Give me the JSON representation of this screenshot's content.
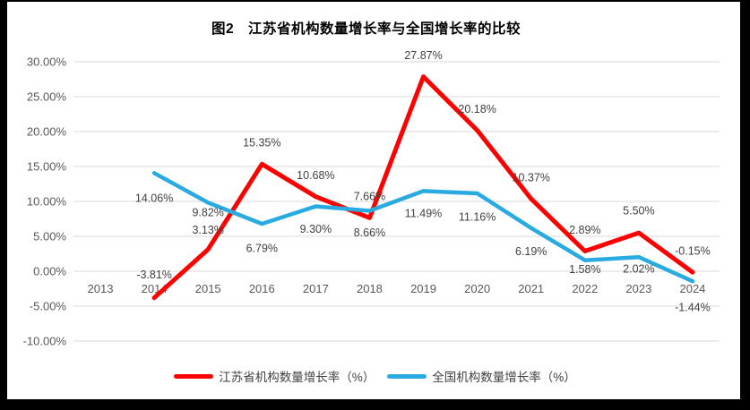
{
  "title": "图2　江苏省机构数量增长率与全国增长率的比较",
  "chart_data": {
    "type": "line",
    "title": "图2　江苏省机构数量增长率与全国增长率的比较",
    "categories": [
      "2013",
      "2014",
      "2015",
      "2016",
      "2017",
      "2018",
      "2019",
      "2020",
      "2021",
      "2022",
      "2023",
      "2024"
    ],
    "series": [
      {
        "name": "江苏省机构数量增长率（%）",
        "color": "#FF0000",
        "values": [
          null,
          -3.81,
          3.13,
          15.35,
          10.68,
          7.66,
          27.87,
          20.18,
          10.37,
          2.89,
          5.5,
          -0.15
        ],
        "labels": [
          null,
          "-3.81%",
          "3.13%",
          "15.35%",
          "10.68%",
          "7.66%",
          "27.87%",
          "20.18%",
          "10.37%",
          "2.89%",
          "5.50%",
          "-0.15%"
        ]
      },
      {
        "name": "全国机构数量增长率（%）",
        "color": "#29ABE2",
        "values": [
          null,
          14.06,
          9.82,
          6.79,
          9.3,
          8.66,
          11.49,
          11.16,
          6.19,
          1.58,
          2.02,
          -1.44
        ],
        "labels": [
          null,
          "14.06%",
          "9.82%",
          "6.79%",
          "9.30%",
          "8.66%",
          "11.49%",
          "11.16%",
          "6.19%",
          "1.58%",
          "2.02%",
          "-1.44%"
        ]
      }
    ],
    "y_axis": {
      "min": -10,
      "max": 30,
      "step": 5,
      "tick_labels": [
        "30.00%",
        "25.00%",
        "20.00%",
        "15.00%",
        "10.00%",
        "5.00%",
        "0.00%",
        "-5.00%",
        "-10.00%"
      ]
    },
    "x_axis": {
      "tick_labels": [
        "2013",
        "2014",
        "2015",
        "2016",
        "2017",
        "2018",
        "2019",
        "2020",
        "2021",
        "2022",
        "2023",
        "2024"
      ]
    },
    "grid": true,
    "gridline_color": "#D9D9D9",
    "legend_position": "bottom"
  }
}
